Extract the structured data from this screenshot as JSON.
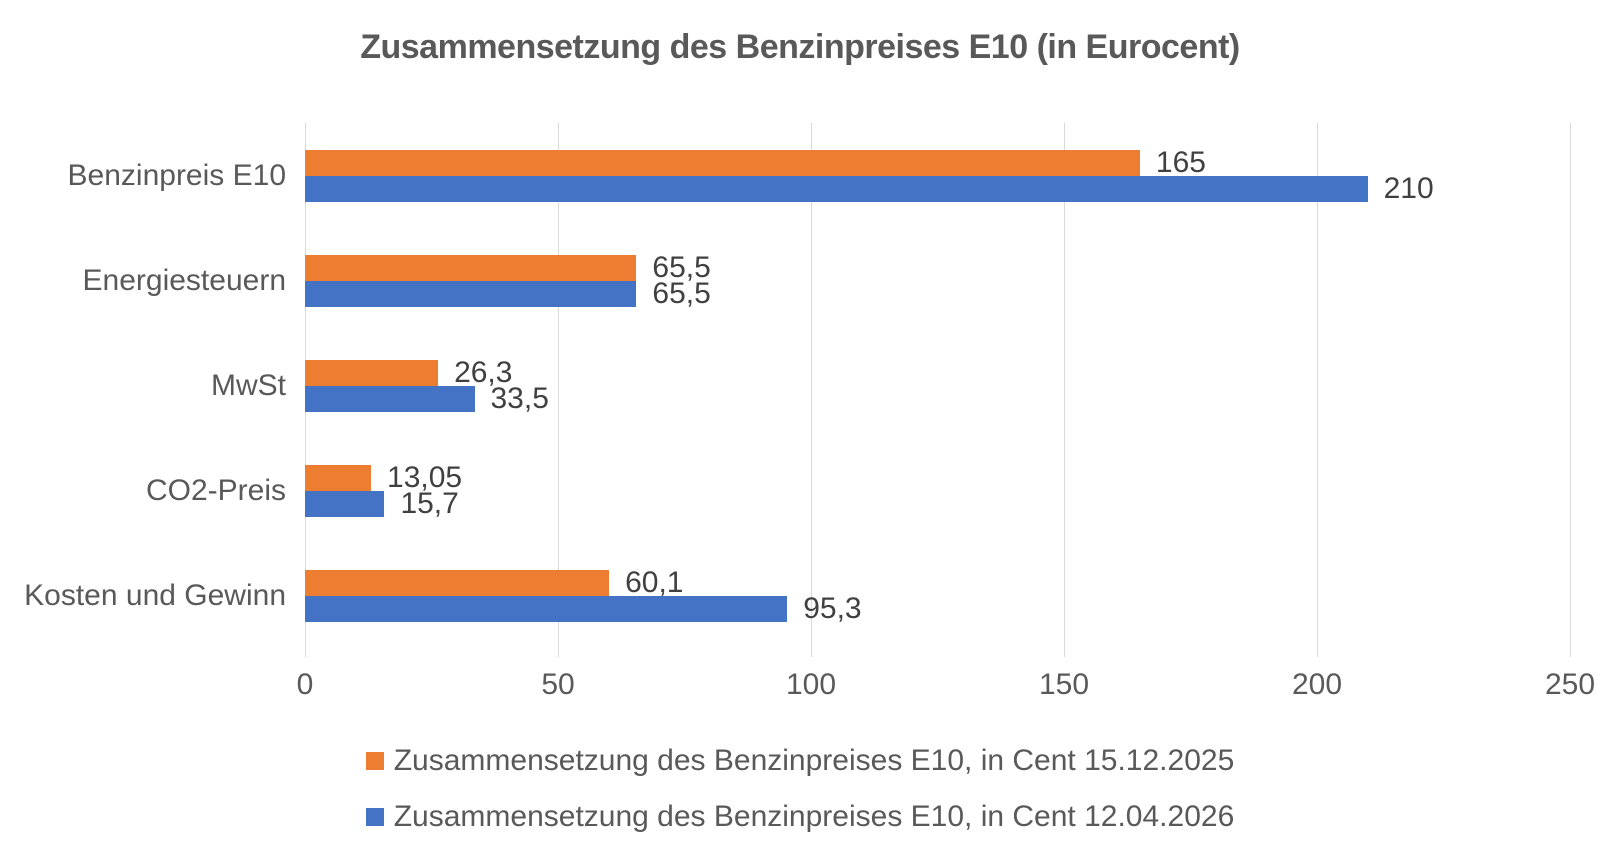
{
  "title": "Zusammensetzung des Benzinpreises E10 (in Eurocent)",
  "colors": {
    "series_2025": "#ED7D31",
    "series_2026": "#4472C4",
    "gridline": "#D9D9D9",
    "title_text": "#595959",
    "axis_text": "#595959",
    "data_label_text": "#404040",
    "background": "#FFFFFF"
  },
  "chart_data": {
    "type": "bar",
    "orientation": "horizontal",
    "title": "Zusammensetzung des Benzinpreises E10 (in Eurocent)",
    "categories": [
      "Benzinpreis E10",
      "Energiesteuern",
      "MwSt",
      "CO2-Preis",
      "Kosten und Gewinn"
    ],
    "series": [
      {
        "name": "Zusammensetzung des Benzinpreises E10, in Cent 15.12.2025",
        "color": "#ED7D31",
        "values": [
          165,
          65.5,
          26.3,
          13.05,
          60.1
        ],
        "labels": [
          "165",
          "65,5",
          "26,3",
          "13,05",
          "60,1"
        ]
      },
      {
        "name": "Zusammensetzung des Benzinpreises E10, in Cent 12.04.2026",
        "color": "#4472C4",
        "values": [
          210,
          65.5,
          33.5,
          15.7,
          95.3
        ],
        "labels": [
          "210",
          "65,5",
          "33,5",
          "15,7",
          "95,3"
        ]
      }
    ],
    "xlabel": "",
    "ylabel": "",
    "xlim": [
      0,
      250
    ],
    "x_ticks": [
      "0",
      "50",
      "100",
      "150",
      "200",
      "250"
    ],
    "grid": true,
    "legend_position": "bottom"
  }
}
